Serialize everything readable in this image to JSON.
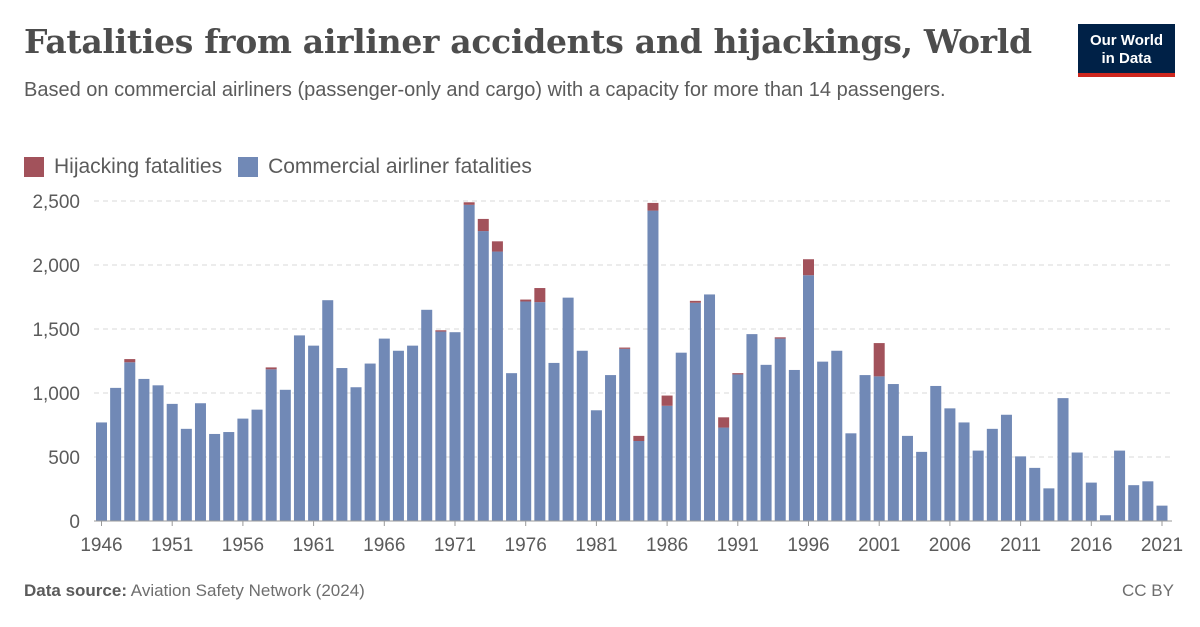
{
  "title": "Fatalities from airliner accidents and hijackings, World",
  "subtitle": "Based on commercial airliners (passenger-only and cargo) with a capacity for more than 14 passengers.",
  "logo": {
    "line1": "Our World",
    "line2": "in Data"
  },
  "footer": {
    "source_label": "Data source:",
    "source_text": "Aviation Safety Network (2024)",
    "license": "CC BY"
  },
  "colors": {
    "hijacking": "#a2525b",
    "commercial": "#7189b6",
    "grid": "#d8d8d8",
    "axis": "#5b5b5b"
  },
  "chart_data": {
    "type": "bar",
    "stacked": true,
    "title": "Fatalities from airliner accidents and hijackings, World",
    "ylim": [
      0,
      2500
    ],
    "yticks": [
      0,
      500,
      1000,
      1500,
      2000,
      2500
    ],
    "ytick_labels": [
      "0",
      "500",
      "1,000",
      "1,500",
      "2,000",
      "2,500"
    ],
    "xtick_labels": [
      "1946",
      "1951",
      "1956",
      "1961",
      "1966",
      "1971",
      "1976",
      "1981",
      "1986",
      "1991",
      "1996",
      "2001",
      "2006",
      "2011",
      "2016",
      "2021"
    ],
    "grid": true,
    "legend_position": "top-left",
    "categories": [
      1946,
      1947,
      1948,
      1949,
      1950,
      1951,
      1952,
      1953,
      1954,
      1955,
      1956,
      1957,
      1958,
      1959,
      1960,
      1961,
      1962,
      1963,
      1964,
      1965,
      1966,
      1967,
      1968,
      1969,
      1970,
      1971,
      1972,
      1973,
      1974,
      1975,
      1976,
      1977,
      1978,
      1979,
      1980,
      1981,
      1982,
      1983,
      1984,
      1985,
      1986,
      1987,
      1988,
      1989,
      1990,
      1991,
      1992,
      1993,
      1994,
      1995,
      1996,
      1997,
      1998,
      1999,
      2000,
      2001,
      2002,
      2003,
      2004,
      2005,
      2006,
      2007,
      2008,
      2009,
      2010,
      2011,
      2012,
      2013,
      2014,
      2015,
      2016,
      2017,
      2018,
      2019,
      2020,
      2021
    ],
    "series": [
      {
        "name": "Commercial airliner fatalities",
        "color": "#7189b6",
        "values": [
          770,
          1040,
          1240,
          1110,
          1060,
          915,
          720,
          920,
          680,
          695,
          800,
          870,
          1185,
          1025,
          1450,
          1370,
          1725,
          1195,
          1045,
          1230,
          1425,
          1330,
          1370,
          1650,
          1480,
          1475,
          2470,
          2265,
          2105,
          1155,
          1715,
          1710,
          1235,
          1745,
          1330,
          865,
          1140,
          1345,
          625,
          2425,
          900,
          1315,
          1705,
          1770,
          730,
          1145,
          1460,
          1220,
          1425,
          1180,
          1920,
          1245,
          1330,
          685,
          1140,
          1130,
          1070,
          665,
          540,
          1055,
          880,
          770,
          550,
          720,
          830,
          505,
          415,
          255,
          960,
          535,
          300,
          45,
          550,
          280,
          310,
          120
        ]
      },
      {
        "name": "Hijacking fatalities",
        "color": "#a2525b",
        "values": [
          0,
          0,
          25,
          0,
          0,
          0,
          0,
          0,
          0,
          0,
          0,
          0,
          15,
          0,
          0,
          0,
          0,
          0,
          0,
          0,
          0,
          0,
          0,
          0,
          10,
          0,
          20,
          95,
          80,
          0,
          15,
          110,
          0,
          0,
          0,
          0,
          0,
          10,
          40,
          60,
          80,
          0,
          15,
          0,
          80,
          10,
          0,
          0,
          10,
          0,
          125,
          0,
          0,
          0,
          0,
          260,
          0,
          0,
          0,
          0,
          0,
          0,
          0,
          0,
          0,
          0,
          0,
          0,
          0,
          0,
          0,
          0,
          0,
          0,
          0,
          0
        ]
      }
    ]
  }
}
